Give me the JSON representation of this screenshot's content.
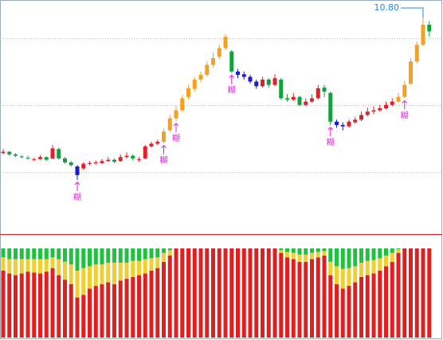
{
  "chart_data": {
    "type": "candlestick",
    "ylim": [
      7.58,
      11.07
    ],
    "gridlines": [
      8.5,
      9.5,
      10.5
    ],
    "candles": [
      [
        8.78,
        8.84,
        8.76,
        8.8
      ],
      [
        8.8,
        8.81,
        8.74,
        8.76
      ],
      [
        8.76,
        8.78,
        8.72,
        8.74
      ],
      [
        8.73,
        8.75,
        8.7,
        8.72
      ],
      [
        8.71,
        8.74,
        8.68,
        8.7
      ],
      [
        8.68,
        8.71,
        8.66,
        8.69
      ],
      [
        8.69,
        8.75,
        8.68,
        8.72
      ],
      [
        8.72,
        8.73,
        8.66,
        8.68
      ],
      [
        8.7,
        8.9,
        8.69,
        8.85
      ],
      [
        8.84,
        8.86,
        8.68,
        8.7
      ],
      [
        8.7,
        8.72,
        8.62,
        8.64
      ],
      [
        8.64,
        8.66,
        8.58,
        8.6
      ],
      [
        8.58,
        8.6,
        8.38,
        8.45
      ],
      [
        8.55,
        8.64,
        8.53,
        8.62
      ],
      [
        8.62,
        8.66,
        8.6,
        8.63
      ],
      [
        8.64,
        8.67,
        8.61,
        8.64
      ],
      [
        8.63,
        8.69,
        8.62,
        8.66
      ],
      [
        8.66,
        8.72,
        8.65,
        8.68
      ],
      [
        8.68,
        8.7,
        8.63,
        8.65
      ],
      [
        8.66,
        8.76,
        8.65,
        8.72
      ],
      [
        8.72,
        8.79,
        8.7,
        8.74
      ],
      [
        8.74,
        8.76,
        8.67,
        8.7
      ],
      [
        8.68,
        8.72,
        8.65,
        8.69
      ],
      [
        8.7,
        8.9,
        8.69,
        8.88
      ],
      [
        8.88,
        8.95,
        8.86,
        8.92
      ],
      [
        8.92,
        8.98,
        8.9,
        8.95
      ],
      [
        8.95,
        9.15,
        8.93,
        9.1
      ],
      [
        9.12,
        9.35,
        9.1,
        9.3
      ],
      [
        9.3,
        9.48,
        9.26,
        9.42
      ],
      [
        9.42,
        9.65,
        9.4,
        9.6
      ],
      [
        9.62,
        9.8,
        9.58,
        9.75
      ],
      [
        9.74,
        9.92,
        9.7,
        9.88
      ],
      [
        9.88,
        10,
        9.84,
        9.95
      ],
      [
        9.95,
        10.15,
        9.92,
        10.1
      ],
      [
        10.1,
        10.28,
        10.06,
        10.2
      ],
      [
        10.22,
        10.4,
        10.18,
        10.35
      ],
      [
        10.35,
        10.56,
        10.32,
        10.52
      ],
      [
        10.3,
        10.32,
        9.98,
        10
      ],
      [
        10,
        10.04,
        9.9,
        9.95
      ],
      [
        9.96,
        10,
        9.88,
        9.92
      ],
      [
        9.92,
        9.95,
        9.82,
        9.85
      ],
      [
        9.85,
        9.88,
        9.74,
        9.78
      ],
      [
        9.78,
        9.92,
        9.76,
        9.88
      ],
      [
        9.88,
        9.9,
        9.76,
        9.8
      ],
      [
        9.8,
        9.96,
        9.78,
        9.9
      ],
      [
        9.88,
        9.9,
        9.58,
        9.6
      ],
      [
        9.6,
        9.66,
        9.55,
        9.58
      ],
      [
        9.58,
        9.68,
        9.56,
        9.62
      ],
      [
        9.62,
        9.64,
        9.48,
        9.5
      ],
      [
        9.5,
        9.6,
        9.48,
        9.55
      ],
      [
        9.55,
        9.66,
        9.53,
        9.6
      ],
      [
        9.6,
        9.8,
        9.58,
        9.75
      ],
      [
        9.76,
        9.8,
        9.62,
        9.7
      ],
      [
        9.68,
        9.7,
        9.2,
        9.25
      ],
      [
        9.25,
        9.28,
        9.16,
        9.2
      ],
      [
        9.2,
        9.24,
        9.12,
        9.18
      ],
      [
        9.18,
        9.28,
        9.16,
        9.25
      ],
      [
        9.24,
        9.32,
        9.22,
        9.28
      ],
      [
        9.28,
        9.4,
        9.26,
        9.35
      ],
      [
        9.35,
        9.46,
        9.33,
        9.4
      ],
      [
        9.4,
        9.48,
        9.36,
        9.42
      ],
      [
        9.42,
        9.5,
        9.4,
        9.45
      ],
      [
        9.45,
        9.55,
        9.43,
        9.5
      ],
      [
        9.5,
        9.6,
        9.48,
        9.55
      ],
      [
        9.55,
        9.68,
        9.53,
        9.62
      ],
      [
        9.62,
        9.86,
        9.6,
        9.8
      ],
      [
        9.82,
        10.2,
        9.8,
        10.15
      ],
      [
        10.15,
        10.45,
        10.12,
        10.4
      ],
      [
        10.4,
        10.8,
        10.38,
        10.7
      ],
      [
        10.7,
        10.75,
        10.52,
        10.6
      ]
    ],
    "colors": [
      "#e0202a",
      "#14a03c",
      "#14a03c",
      "#14a03c",
      "#14a03c",
      "#e0202a",
      "#e0202a",
      "#14a03c",
      "#e0202a",
      "#14a03c",
      "#14a03c",
      "#14a03c",
      "#1a1ad0",
      "#e0202a",
      "#e0202a",
      "#e0202a",
      "#e0202a",
      "#e0202a",
      "#14a03c",
      "#e0202a",
      "#e0202a",
      "#14a03c",
      "#e0202a",
      "#e0202a",
      "#e0202a",
      "#e0202a",
      "#f5a020",
      "#f5a020",
      "#f5a020",
      "#f5a020",
      "#f5a020",
      "#f5a020",
      "#f5a020",
      "#f5a020",
      "#f5a020",
      "#f5a020",
      "#f5a020",
      "#14a03c",
      "#1a1ad0",
      "#1a1ad0",
      "#1a1ad0",
      "#1a1ad0",
      "#e0202a",
      "#14a03c",
      "#e0202a",
      "#14a03c",
      "#14a03c",
      "#e0202a",
      "#14a03c",
      "#e0202a",
      "#e0202a",
      "#e0202a",
      "#14a03c",
      "#14a03c",
      "#1a1ad0",
      "#1a1ad0",
      "#e0202a",
      "#e0202a",
      "#e0202a",
      "#e0202a",
      "#e0202a",
      "#e0202a",
      "#e0202a",
      "#e0202a",
      "#f5a020",
      "#f5a020",
      "#f5a020",
      "#f5a020",
      "#f5a020",
      "#14a03c"
    ],
    "price_label": {
      "value": 10.8,
      "label": "10.80",
      "color": "#1e8ce0"
    },
    "signals": [
      {
        "x": 12,
        "label": "糊"
      },
      {
        "x": 26,
        "label": "糊"
      },
      {
        "x": 28,
        "label": "糊"
      },
      {
        "x": 37,
        "label": "糊"
      },
      {
        "x": 53,
        "label": "糊"
      },
      {
        "x": 65,
        "label": "糊"
      }
    ],
    "signal_color": "#e020e0",
    "indicator": {
      "type": "stacked-bar",
      "ylim": [
        0,
        100
      ],
      "series": [
        {
          "color": "#e02020",
          "values": [
            75,
            72,
            70,
            72,
            74,
            73,
            72,
            74,
            78,
            70,
            65,
            60,
            45,
            48,
            55,
            58,
            60,
            62,
            60,
            64,
            66,
            68,
            70,
            72,
            75,
            78,
            85,
            92,
            100,
            100,
            100,
            100,
            100,
            100,
            100,
            100,
            100,
            100,
            100,
            100,
            100,
            100,
            100,
            100,
            100,
            95,
            90,
            88,
            85,
            85,
            88,
            90,
            92,
            70,
            60,
            55,
            58,
            62,
            68,
            70,
            72,
            75,
            80,
            85,
            95,
            100,
            100,
            100,
            100,
            100
          ]
        },
        {
          "color": "#f0d030",
          "values": [
            15,
            16,
            18,
            16,
            14,
            15,
            16,
            14,
            12,
            18,
            20,
            22,
            30,
            30,
            25,
            24,
            22,
            22,
            24,
            20,
            18,
            18,
            16,
            16,
            14,
            12,
            10,
            6,
            0,
            0,
            0,
            0,
            0,
            0,
            0,
            0,
            0,
            0,
            0,
            0,
            0,
            0,
            0,
            0,
            0,
            3,
            6,
            7,
            8,
            8,
            7,
            6,
            5,
            15,
            20,
            22,
            20,
            18,
            16,
            16,
            15,
            14,
            12,
            10,
            4,
            0,
            0,
            0,
            0,
            0
          ]
        },
        {
          "color": "#20c040",
          "values": [
            10,
            12,
            12,
            12,
            12,
            12,
            12,
            12,
            10,
            12,
            15,
            18,
            25,
            22,
            20,
            18,
            18,
            16,
            16,
            16,
            16,
            14,
            14,
            12,
            11,
            10,
            5,
            2,
            0,
            0,
            0,
            0,
            0,
            0,
            0,
            0,
            0,
            0,
            0,
            0,
            0,
            0,
            0,
            0,
            0,
            2,
            4,
            5,
            7,
            7,
            5,
            4,
            3,
            15,
            20,
            23,
            22,
            20,
            16,
            14,
            13,
            11,
            8,
            5,
            1,
            0,
            0,
            0,
            0,
            0
          ]
        }
      ]
    }
  }
}
